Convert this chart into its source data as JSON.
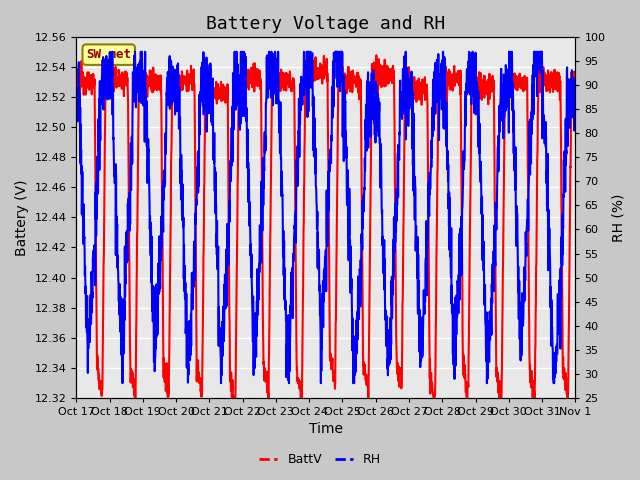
{
  "title": "Battery Voltage and RH",
  "xlabel": "Time",
  "ylabel_left": "Battery (V)",
  "ylabel_right": "RH (%)",
  "station_label": "SW_met",
  "x_tick_labels": [
    "Oct 17",
    "Oct 18",
    "Oct 19",
    "Oct 20",
    "Oct 21",
    "Oct 22",
    "Oct 23",
    "Oct 24",
    "Oct 25",
    "Oct 26",
    "Oct 27",
    "Oct 28",
    "Oct 29",
    "Oct 30",
    "Oct 31",
    "Nov 1"
  ],
  "ylim_left": [
    12.32,
    12.56
  ],
  "ylim_right": [
    25,
    100
  ],
  "yticks_left": [
    12.32,
    12.34,
    12.36,
    12.38,
    12.4,
    12.42,
    12.44,
    12.46,
    12.48,
    12.5,
    12.52,
    12.54,
    12.56
  ],
  "yticks_right": [
    25,
    30,
    35,
    40,
    45,
    50,
    55,
    60,
    65,
    70,
    75,
    80,
    85,
    90,
    95,
    100
  ],
  "plot_bg_color": "#e8e8e8",
  "fig_bg_color": "#c8c8c8",
  "grid_color": "#ffffff",
  "batt_color": "#ff0000",
  "rh_color": "#0000ff",
  "legend_batt": "BattV",
  "legend_rh": "RH",
  "title_fontsize": 13,
  "label_fontsize": 10,
  "tick_fontsize": 8,
  "legend_fontsize": 9,
  "station_fontsize": 9,
  "station_text_color": "#8B0000",
  "station_bg": "#ffff99",
  "station_border": "#8B8000",
  "linewidth_batt": 1.5,
  "linewidth_rh": 1.5
}
